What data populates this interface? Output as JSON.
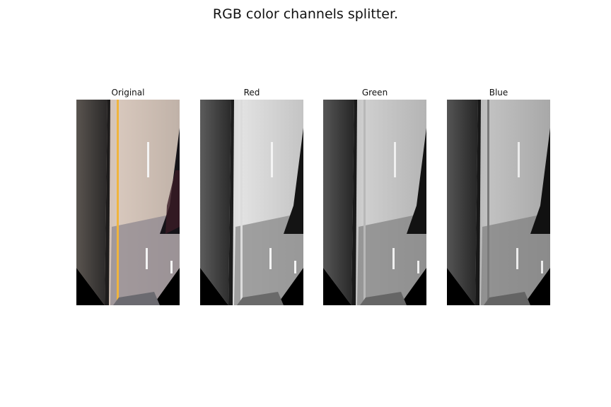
{
  "title": "RGB color channels splitter.",
  "panels": [
    {
      "id": "original",
      "label": "Original",
      "image": "road-original-image"
    },
    {
      "id": "red",
      "label": "Red",
      "image": "road-red-channel-image"
    },
    {
      "id": "green",
      "label": "Green",
      "image": "road-green-channel-image"
    },
    {
      "id": "blue",
      "label": "Blue",
      "image": "road-blue-channel-image"
    }
  ],
  "colors": {
    "background": "#ffffff",
    "road_light": "#c8b8ad",
    "lane_line": "#f0b43c"
  }
}
